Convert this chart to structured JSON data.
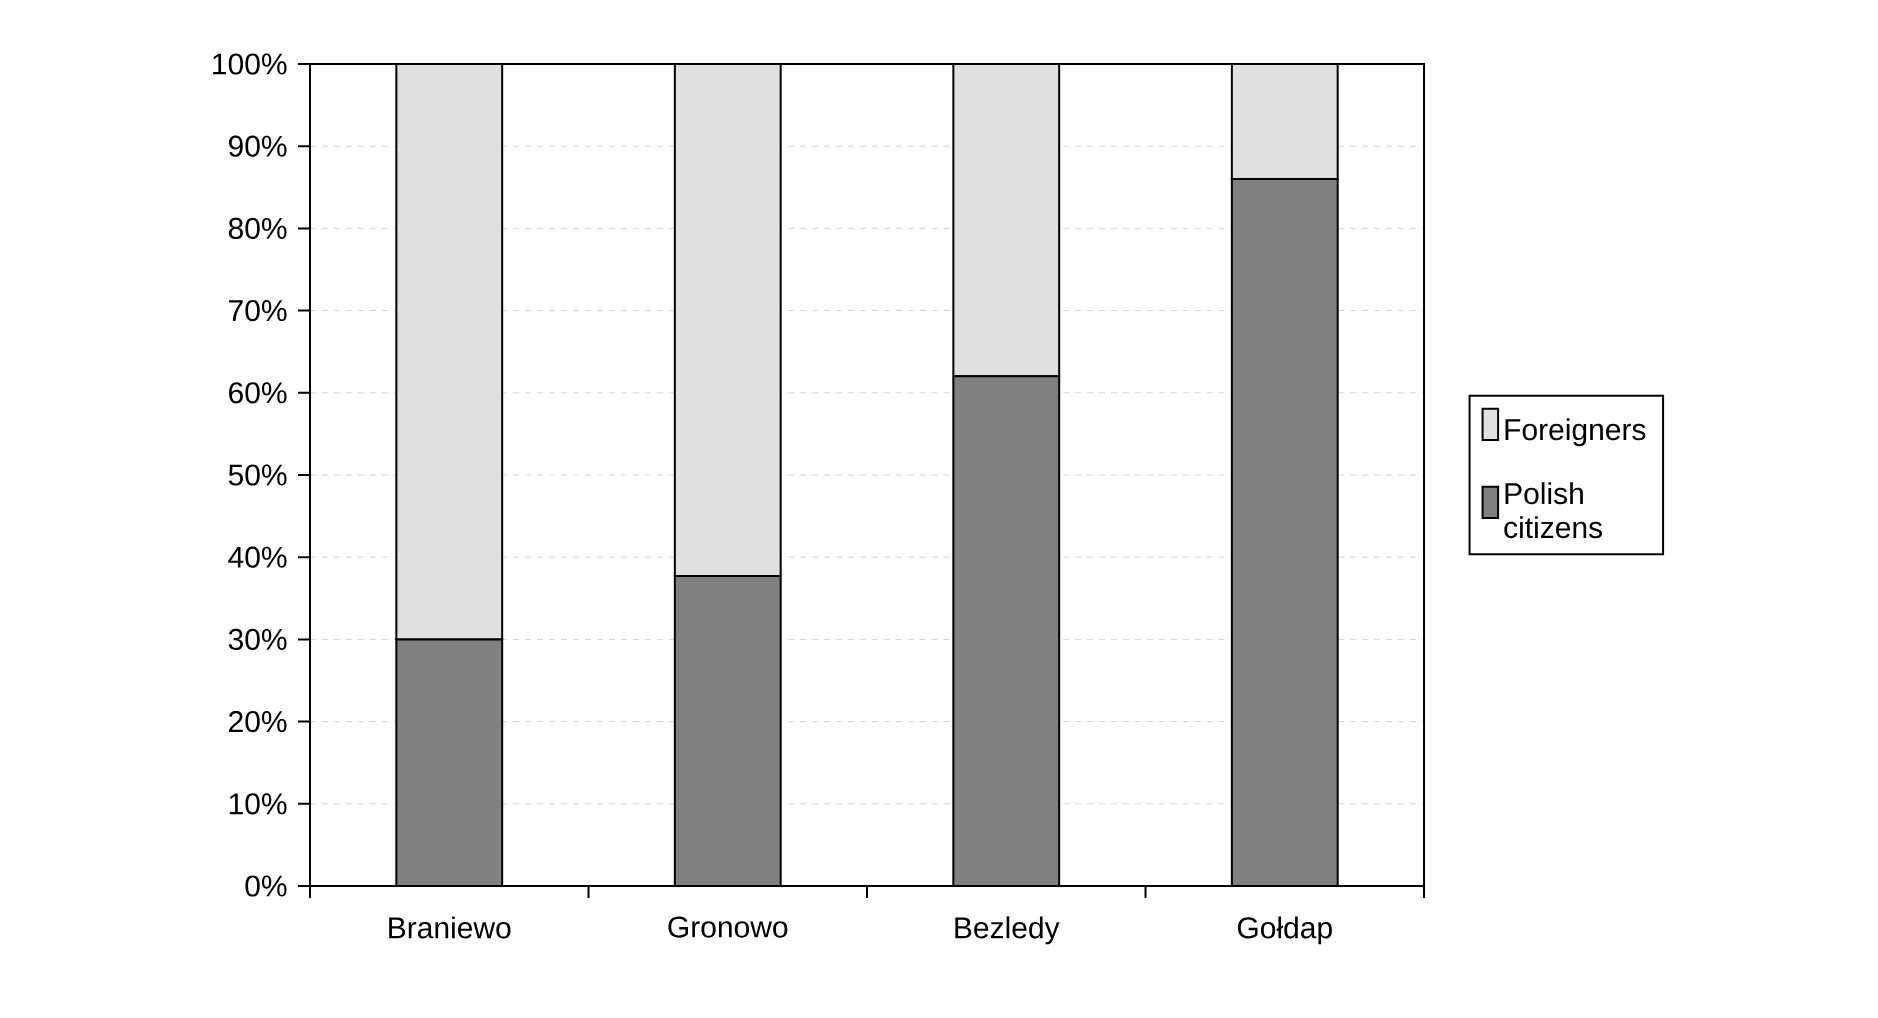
{
  "chart_data": {
    "type": "bar",
    "stacked": true,
    "categories": [
      "Braniewo",
      "Gronowo",
      "Bezledy",
      "Gołdap"
    ],
    "series": [
      {
        "name": "Polish citizens",
        "color": "#808080",
        "values": [
          30,
          37.7,
          62,
          86
        ]
      },
      {
        "name": "Foreigners",
        "color": "#e0e0e0",
        "values": [
          70,
          62.3,
          38,
          14
        ]
      }
    ],
    "ylim": [
      0,
      100
    ],
    "yticks": [
      {
        "value": 0,
        "label": "0%"
      },
      {
        "value": 10,
        "label": "10%"
      },
      {
        "value": 20,
        "label": "20%"
      },
      {
        "value": 30,
        "label": "30%"
      },
      {
        "value": 40,
        "label": "40%"
      },
      {
        "value": 50,
        "label": "50%"
      },
      {
        "value": 60,
        "label": "60%"
      },
      {
        "value": 70,
        "label": "70%"
      },
      {
        "value": 80,
        "label": "80%"
      },
      {
        "value": 90,
        "label": "90%"
      },
      {
        "value": 100,
        "label": "100%"
      }
    ],
    "grid": "y",
    "legend": "right"
  }
}
